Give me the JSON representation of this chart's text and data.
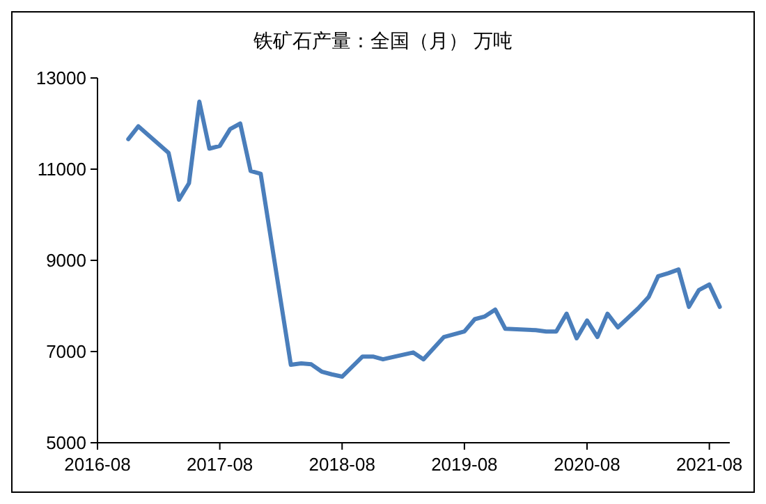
{
  "chart_data": {
    "type": "line",
    "title": "铁矿石产量：全国（月） 万吨",
    "x": [
      "2016-11",
      "2016-12",
      "2017-03",
      "2017-04",
      "2017-05",
      "2017-06",
      "2017-07",
      "2017-08",
      "2017-09",
      "2017-10",
      "2017-11",
      "2017-12",
      "2018-03",
      "2018-04",
      "2018-05",
      "2018-06",
      "2018-07",
      "2018-08",
      "2018-10",
      "2018-11",
      "2018-12",
      "2019-03",
      "2019-04",
      "2019-06",
      "2019-08",
      "2019-09",
      "2019-10",
      "2019-11",
      "2019-12",
      "2020-03",
      "2020-04",
      "2020-05",
      "2020-06",
      "2020-07",
      "2020-08",
      "2020-09",
      "2020-10",
      "2020-11",
      "2021-01",
      "2021-02",
      "2021-03",
      "2021-04",
      "2021-05",
      "2021-06",
      "2021-07",
      "2021-08",
      "2021-09"
    ],
    "series": [
      {
        "color": "#4a7ebb",
        "values": [
          11660,
          11940,
          11360,
          10330,
          10690,
          12480,
          11450,
          11510,
          11880,
          12000,
          10960,
          10900,
          6710,
          6740,
          6720,
          6560,
          6500,
          6450,
          6890,
          6890,
          6830,
          6980,
          6830,
          7320,
          7440,
          7710,
          7770,
          7920,
          7500,
          7470,
          7440,
          7440,
          7830,
          7290,
          7680,
          7320,
          7830,
          7530,
          7950,
          8200,
          8650,
          8720,
          8800,
          7980,
          8350,
          8470,
          7980
        ]
      }
    ],
    "xlim": [
      "2016-08",
      "2021-10"
    ],
    "xticks": [
      "2016-08",
      "2017-08",
      "2018-08",
      "2019-08",
      "2020-08",
      "2021-08"
    ],
    "ylim": [
      5000,
      13000
    ],
    "yticks": [
      5000,
      7000,
      9000,
      11000,
      13000
    ],
    "grid": false,
    "marker": "none",
    "line_style": "solid"
  }
}
